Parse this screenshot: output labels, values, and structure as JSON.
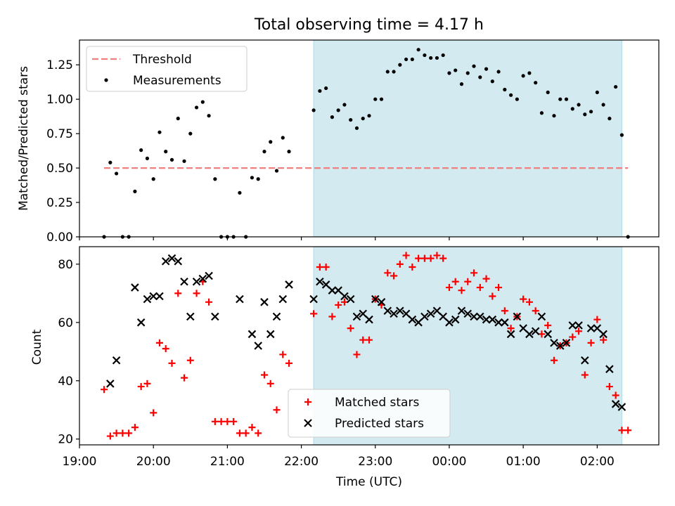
{
  "figure": {
    "title": "Total observing time = 4.17 h",
    "xlabel": "Time (UTC)",
    "x_ticks": [
      "19:00",
      "20:00",
      "21:00",
      "22:00",
      "23:00",
      "00:00",
      "01:00",
      "02:00"
    ],
    "shade_color": "#d3eaf1",
    "shade_edge_color": "#add8e6"
  },
  "chart_data": [
    {
      "type": "scatter",
      "ylabel": "Matched/Predicted stars",
      "xlim": [
        "19:00",
        "02:50"
      ],
      "ylim": [
        0,
        1.43
      ],
      "y_ticks": [
        "0.00",
        "0.25",
        "0.50",
        "0.75",
        "1.00",
        "1.25"
      ],
      "shaded_span": [
        "22:10",
        "02:20"
      ],
      "legend": "top-left",
      "lines": [
        {
          "name": "Threshold",
          "style": "dashed",
          "color": "#f08080",
          "x": [
            "19:20",
            "02:25"
          ],
          "y": [
            0.5,
            0.5
          ]
        }
      ],
      "series": [
        {
          "name": "Measurements",
          "marker": "dot",
          "color": "#000000",
          "points": [
            [
              "19:20",
              0.0
            ],
            [
              "19:25",
              0.54
            ],
            [
              "19:30",
              0.46
            ],
            [
              "19:35",
              0.0
            ],
            [
              "19:40",
              0.0
            ],
            [
              "19:45",
              0.33
            ],
            [
              "19:50",
              0.63
            ],
            [
              "19:55",
              0.57
            ],
            [
              "20:00",
              0.42
            ],
            [
              "20:05",
              0.76
            ],
            [
              "20:10",
              0.62
            ],
            [
              "20:15",
              0.56
            ],
            [
              "20:20",
              0.86
            ],
            [
              "20:25",
              0.55
            ],
            [
              "20:30",
              0.75
            ],
            [
              "20:35",
              0.94
            ],
            [
              "20:40",
              0.98
            ],
            [
              "20:45",
              0.88
            ],
            [
              "20:50",
              0.42
            ],
            [
              "20:55",
              0.0
            ],
            [
              "21:00",
              0.0
            ],
            [
              "21:05",
              0.0
            ],
            [
              "21:10",
              0.32
            ],
            [
              "21:15",
              0.0
            ],
            [
              "21:20",
              0.43
            ],
            [
              "21:25",
              0.42
            ],
            [
              "21:30",
              0.62
            ],
            [
              "21:35",
              0.69
            ],
            [
              "21:40",
              0.48
            ],
            [
              "21:45",
              0.72
            ],
            [
              "21:50",
              0.62
            ],
            [
              "22:10",
              0.92
            ],
            [
              "22:15",
              1.06
            ],
            [
              "22:20",
              1.08
            ],
            [
              "22:25",
              0.87
            ],
            [
              "22:30",
              0.92
            ],
            [
              "22:35",
              0.96
            ],
            [
              "22:40",
              0.85
            ],
            [
              "22:45",
              0.79
            ],
            [
              "22:50",
              0.86
            ],
            [
              "22:55",
              0.88
            ],
            [
              "23:00",
              1.0
            ],
            [
              "23:05",
              1.0
            ],
            [
              "23:10",
              1.2
            ],
            [
              "23:15",
              1.2
            ],
            [
              "23:20",
              1.25
            ],
            [
              "23:25",
              1.29
            ],
            [
              "23:30",
              1.29
            ],
            [
              "23:35",
              1.36
            ],
            [
              "23:40",
              1.32
            ],
            [
              "23:45",
              1.3
            ],
            [
              "23:50",
              1.3
            ],
            [
              "23:55",
              1.32
            ],
            [
              "00:00",
              1.19
            ],
            [
              "00:05",
              1.21
            ],
            [
              "00:10",
              1.11
            ],
            [
              "00:15",
              1.19
            ],
            [
              "00:20",
              1.24
            ],
            [
              "00:25",
              1.16
            ],
            [
              "00:30",
              1.22
            ],
            [
              "00:35",
              1.13
            ],
            [
              "00:40",
              1.2
            ],
            [
              "00:45",
              1.07
            ],
            [
              "00:50",
              1.03
            ],
            [
              "00:55",
              1.0
            ],
            [
              "01:00",
              1.17
            ],
            [
              "01:05",
              1.19
            ],
            [
              "01:10",
              1.12
            ],
            [
              "01:15",
              0.9
            ],
            [
              "01:20",
              1.05
            ],
            [
              "01:25",
              0.88
            ],
            [
              "01:30",
              1.0
            ],
            [
              "01:35",
              1.0
            ],
            [
              "01:40",
              0.93
            ],
            [
              "01:45",
              0.96
            ],
            [
              "01:50",
              0.89
            ],
            [
              "01:55",
              0.91
            ],
            [
              "02:00",
              1.05
            ],
            [
              "02:05",
              0.96
            ],
            [
              "02:10",
              0.86
            ],
            [
              "02:15",
              1.09
            ],
            [
              "02:20",
              0.74
            ],
            [
              "02:25",
              0.0
            ]
          ]
        }
      ]
    },
    {
      "type": "scatter",
      "ylabel": "Count",
      "xlim": [
        "19:00",
        "02:50"
      ],
      "ylim": [
        18,
        86
      ],
      "y_ticks": [
        "20",
        "40",
        "60",
        "80"
      ],
      "shaded_span": [
        "22:10",
        "02:20"
      ],
      "legend": "bottom-center",
      "series": [
        {
          "name": "Matched stars",
          "marker": "plus",
          "color": "#ff0000",
          "points": [
            [
              "19:20",
              37
            ],
            [
              "19:25",
              21
            ],
            [
              "19:30",
              22
            ],
            [
              "19:35",
              22
            ],
            [
              "19:40",
              22
            ],
            [
              "19:45",
              24
            ],
            [
              "19:50",
              38
            ],
            [
              "19:55",
              39
            ],
            [
              "20:00",
              29
            ],
            [
              "20:05",
              53
            ],
            [
              "20:10",
              51
            ],
            [
              "20:15",
              46
            ],
            [
              "20:20",
              70
            ],
            [
              "20:25",
              41
            ],
            [
              "20:30",
              47
            ],
            [
              "20:35",
              70
            ],
            [
              "20:40",
              74
            ],
            [
              "20:45",
              67
            ],
            [
              "20:50",
              26
            ],
            [
              "20:55",
              26
            ],
            [
              "21:00",
              26
            ],
            [
              "21:05",
              26
            ],
            [
              "21:10",
              22
            ],
            [
              "21:15",
              22
            ],
            [
              "21:20",
              24
            ],
            [
              "21:25",
              22
            ],
            [
              "21:30",
              42
            ],
            [
              "21:35",
              39
            ],
            [
              "21:40",
              30
            ],
            [
              "21:45",
              49
            ],
            [
              "21:50",
              46
            ],
            [
              "22:10",
              63
            ],
            [
              "22:15",
              79
            ],
            [
              "22:20",
              79
            ],
            [
              "22:25",
              62
            ],
            [
              "22:30",
              66
            ],
            [
              "22:35",
              67
            ],
            [
              "22:40",
              58
            ],
            [
              "22:45",
              49
            ],
            [
              "22:50",
              54
            ],
            [
              "22:55",
              54
            ],
            [
              "23:00",
              68
            ],
            [
              "23:05",
              66
            ],
            [
              "23:10",
              77
            ],
            [
              "23:15",
              76
            ],
            [
              "23:20",
              80
            ],
            [
              "23:25",
              83
            ],
            [
              "23:30",
              79
            ],
            [
              "23:35",
              82
            ],
            [
              "23:40",
              82
            ],
            [
              "23:45",
              82
            ],
            [
              "23:50",
              83
            ],
            [
              "23:55",
              82
            ],
            [
              "00:00",
              72
            ],
            [
              "00:05",
              74
            ],
            [
              "00:10",
              71
            ],
            [
              "00:15",
              74
            ],
            [
              "00:20",
              77
            ],
            [
              "00:25",
              72
            ],
            [
              "00:30",
              75
            ],
            [
              "00:35",
              69
            ],
            [
              "00:40",
              72
            ],
            [
              "00:45",
              64
            ],
            [
              "00:50",
              58
            ],
            [
              "00:55",
              62
            ],
            [
              "01:00",
              68
            ],
            [
              "01:05",
              67
            ],
            [
              "01:10",
              64
            ],
            [
              "01:15",
              56
            ],
            [
              "01:20",
              59
            ],
            [
              "01:25",
              47
            ],
            [
              "01:30",
              52
            ],
            [
              "01:35",
              53
            ],
            [
              "01:40",
              55
            ],
            [
              "01:45",
              57
            ],
            [
              "01:50",
              42
            ],
            [
              "01:55",
              53
            ],
            [
              "02:00",
              61
            ],
            [
              "02:05",
              54
            ],
            [
              "02:10",
              38
            ],
            [
              "02:15",
              35
            ],
            [
              "02:20",
              23
            ],
            [
              "02:25",
              23
            ]
          ]
        },
        {
          "name": "Predicted stars",
          "marker": "x",
          "color": "#000000",
          "points": [
            [
              "19:25",
              39
            ],
            [
              "19:30",
              47
            ],
            [
              "19:45",
              72
            ],
            [
              "19:50",
              60
            ],
            [
              "19:55",
              68
            ],
            [
              "20:00",
              69
            ],
            [
              "20:05",
              69
            ],
            [
              "20:10",
              81
            ],
            [
              "20:15",
              82
            ],
            [
              "20:20",
              81
            ],
            [
              "20:25",
              74
            ],
            [
              "20:30",
              62
            ],
            [
              "20:35",
              74
            ],
            [
              "20:40",
              75
            ],
            [
              "20:45",
              76
            ],
            [
              "20:50",
              62
            ],
            [
              "21:10",
              68
            ],
            [
              "21:20",
              56
            ],
            [
              "21:25",
              52
            ],
            [
              "21:30",
              67
            ],
            [
              "21:35",
              56
            ],
            [
              "21:40",
              62
            ],
            [
              "21:45",
              68
            ],
            [
              "21:50",
              73
            ],
            [
              "22:10",
              68
            ],
            [
              "22:15",
              74
            ],
            [
              "22:20",
              73
            ],
            [
              "22:25",
              71
            ],
            [
              "22:30",
              71
            ],
            [
              "22:35",
              69
            ],
            [
              "22:40",
              68
            ],
            [
              "22:45",
              62
            ],
            [
              "22:50",
              63
            ],
            [
              "22:55",
              61
            ],
            [
              "23:00",
              68
            ],
            [
              "23:05",
              67
            ],
            [
              "23:10",
              64
            ],
            [
              "23:15",
              63
            ],
            [
              "23:20",
              64
            ],
            [
              "23:25",
              63
            ],
            [
              "23:30",
              61
            ],
            [
              "23:35",
              60
            ],
            [
              "23:40",
              62
            ],
            [
              "23:45",
              63
            ],
            [
              "23:50",
              64
            ],
            [
              "23:55",
              62
            ],
            [
              "00:00",
              60
            ],
            [
              "00:05",
              61
            ],
            [
              "00:10",
              64
            ],
            [
              "00:15",
              63
            ],
            [
              "00:20",
              62
            ],
            [
              "00:25",
              62
            ],
            [
              "00:30",
              61
            ],
            [
              "00:35",
              61
            ],
            [
              "00:40",
              60
            ],
            [
              "00:45",
              60
            ],
            [
              "00:50",
              56
            ],
            [
              "00:55",
              62
            ],
            [
              "01:00",
              58
            ],
            [
              "01:05",
              56
            ],
            [
              "01:10",
              57
            ],
            [
              "01:15",
              62
            ],
            [
              "01:20",
              56
            ],
            [
              "01:25",
              53
            ],
            [
              "01:30",
              52
            ],
            [
              "01:35",
              53
            ],
            [
              "01:40",
              59
            ],
            [
              "01:45",
              59
            ],
            [
              "01:50",
              47
            ],
            [
              "01:55",
              58
            ],
            [
              "02:00",
              58
            ],
            [
              "02:05",
              56
            ],
            [
              "02:10",
              44
            ],
            [
              "02:15",
              32
            ],
            [
              "02:20",
              31
            ]
          ]
        }
      ]
    }
  ]
}
